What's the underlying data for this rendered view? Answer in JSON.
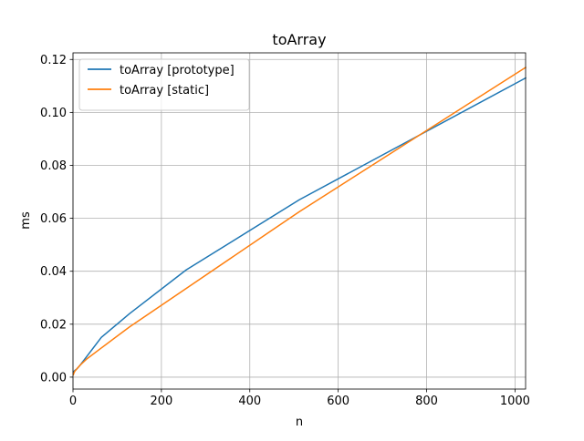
{
  "chart_data": {
    "type": "line",
    "title": "toArray",
    "xlabel": "n",
    "ylabel": "ms",
    "xlim": [
      0,
      1024
    ],
    "ylim": [
      -0.0045,
      0.1225
    ],
    "xticks": [
      0,
      200,
      400,
      600,
      800,
      1000
    ],
    "yticks": [
      0.0,
      0.02,
      0.04,
      0.06,
      0.08,
      0.1,
      0.12
    ],
    "xtick_labels": [
      "0",
      "200",
      "400",
      "600",
      "800",
      "1000"
    ],
    "ytick_labels": [
      "0.00",
      "0.02",
      "0.04",
      "0.06",
      "0.08",
      "0.10",
      "0.12"
    ],
    "grid": true,
    "legend_position": "top-left",
    "series": [
      {
        "name": "toArray [prototype]",
        "color": "#1f77b4",
        "x": [
          1,
          2,
          4,
          8,
          16,
          32,
          64,
          128,
          256,
          512,
          1024
        ],
        "y": [
          0.002,
          0.0022,
          0.0025,
          0.003,
          0.0045,
          0.008,
          0.015,
          0.024,
          0.0405,
          0.067,
          0.113
        ]
      },
      {
        "name": "toArray [static]",
        "color": "#ff7f0e",
        "x": [
          1,
          2,
          4,
          8,
          16,
          32,
          64,
          128,
          256,
          512,
          1024
        ],
        "y": [
          0.001,
          0.0015,
          0.0022,
          0.003,
          0.0045,
          0.007,
          0.011,
          0.019,
          0.0335,
          0.0625,
          0.117
        ]
      }
    ]
  }
}
